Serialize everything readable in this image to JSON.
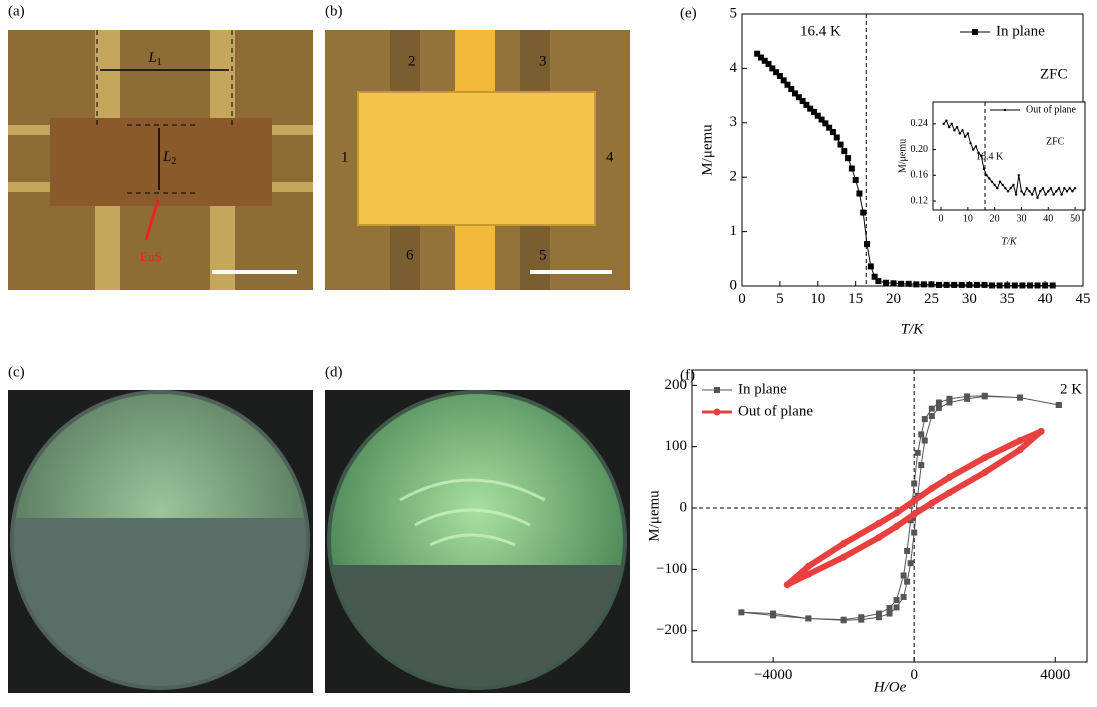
{
  "figure": {
    "panels": [
      "(a)",
      "(b)",
      "(c)",
      "(d)",
      "(e)",
      "(f)"
    ],
    "a": {
      "L1": {
        "text": "L",
        "sub": "1"
      },
      "L2": {
        "text": "L",
        "sub": "2"
      },
      "material": "EuS"
    },
    "b": {
      "electrodes": [
        "1",
        "2",
        "3",
        "4",
        "5",
        "6"
      ]
    }
  },
  "chart_data": [
    {
      "type": "line",
      "xlabel": "T/K",
      "ylabel": "M/μemu",
      "xlim": [
        0,
        45
      ],
      "ylim": [
        0,
        5
      ],
      "xticks": [
        0,
        5,
        10,
        15,
        20,
        25,
        30,
        35,
        40,
        45
      ],
      "yticks": [
        0,
        1,
        2,
        3,
        4,
        5
      ],
      "vline": 16.4,
      "annotations": [
        "16.4 K",
        "ZFC"
      ],
      "legend": "upper right",
      "series": [
        {
          "name": "In plane",
          "color": "#000000",
          "marker": "square",
          "x": [
            2,
            2.5,
            3,
            3.5,
            4,
            4.5,
            5,
            5.5,
            6,
            6.5,
            7,
            7.5,
            8,
            8.5,
            9,
            9.5,
            10,
            10.5,
            11,
            11.5,
            12,
            12.5,
            13,
            13.5,
            14,
            14.5,
            15,
            15.5,
            16,
            16.5,
            17,
            17.5,
            18,
            19,
            20,
            21,
            22,
            23,
            24,
            25,
            26,
            27,
            28,
            29,
            30,
            31,
            32,
            33,
            34,
            35,
            36,
            37,
            38,
            39,
            40,
            41
          ],
          "values": [
            4.27,
            4.2,
            4.14,
            4.08,
            4.0,
            3.93,
            3.86,
            3.78,
            3.7,
            3.62,
            3.54,
            3.47,
            3.4,
            3.33,
            3.26,
            3.2,
            3.13,
            3.06,
            2.99,
            2.91,
            2.83,
            2.73,
            2.6,
            2.48,
            2.35,
            2.16,
            1.95,
            1.7,
            1.35,
            0.77,
            0.36,
            0.17,
            0.09,
            0.06,
            0.05,
            0.04,
            0.04,
            0.03,
            0.03,
            0.03,
            0.02,
            0.02,
            0.02,
            0.02,
            0.02,
            0.02,
            0.02,
            0.01,
            0.01,
            0.01,
            0.01,
            0.01,
            0.01,
            0.01,
            0.01,
            0.01
          ]
        }
      ]
    },
    {
      "type": "line",
      "xlabel": "T/K",
      "ylabel": "M/μemu",
      "xlim": [
        -3,
        53.7
      ],
      "ylim": [
        0.106,
        0.274
      ],
      "xticks": [
        0,
        10,
        20,
        30,
        40,
        50
      ],
      "yticks": [
        0.12,
        0.16,
        {
          "value": 0.2,
          "label": "0.20"
        },
        0.24
      ],
      "vline": 16.4,
      "annotations": [
        "16.4 K",
        "ZFC"
      ],
      "legend": "upper right",
      "series": [
        {
          "name": "Out of plane",
          "color": "#000000",
          "marker": "dot",
          "x": [
            1,
            2,
            3,
            4,
            5,
            6,
            7,
            8,
            9,
            10,
            11,
            12,
            13,
            14,
            15,
            16,
            17,
            18,
            19,
            20,
            21,
            22,
            23,
            24,
            25,
            26,
            27,
            28,
            29,
            30,
            31,
            32,
            33,
            34,
            35,
            36,
            37,
            38,
            39,
            40,
            41,
            42,
            43,
            44,
            45,
            46,
            47,
            48,
            49,
            50
          ],
          "values": [
            0.24,
            0.245,
            0.235,
            0.24,
            0.23,
            0.235,
            0.225,
            0.23,
            0.22,
            0.225,
            0.21,
            0.2,
            0.205,
            0.195,
            0.19,
            0.17,
            0.16,
            0.155,
            0.15,
            0.145,
            0.14,
            0.15,
            0.145,
            0.14,
            0.135,
            0.14,
            0.145,
            0.13,
            0.16,
            0.135,
            0.13,
            0.14,
            0.135,
            0.13,
            0.14,
            0.125,
            0.135,
            0.14,
            0.13,
            0.135,
            0.14,
            0.13,
            0.135,
            0.14,
            0.13,
            0.14,
            0.135,
            0.14,
            0.135,
            0.14
          ]
        }
      ]
    },
    {
      "type": "line",
      "xlabel": "H/Oe",
      "ylabel": "M/μemu",
      "xlim": [
        -6300,
        4900
      ],
      "ylim": [
        -251,
        225
      ],
      "xticks": [
        {
          "value": -4000,
          "label": "−4000"
        },
        0,
        4000
      ],
      "yticks": [
        {
          "value": -200,
          "label": "−200"
        },
        {
          "value": -100,
          "label": "−100"
        },
        0,
        100,
        200
      ],
      "vline": 0,
      "hline": 0,
      "annotations": [
        "2 K"
      ],
      "legend": "upper left",
      "series": [
        {
          "name": "In plane",
          "color": "#555555",
          "marker": "square",
          "x": [
            4100,
            3000,
            2000,
            1500,
            1000,
            700,
            500,
            300,
            200,
            100,
            0,
            -100,
            -200,
            -300,
            -500,
            -700,
            -1000,
            -1500,
            -2000,
            -3000,
            -4000,
            -4900,
            -4000,
            -3000,
            -2000,
            -1500,
            -1000,
            -700,
            -500,
            -300,
            -200,
            -100,
            0,
            100,
            200,
            300,
            500,
            700,
            1000,
            1500,
            2000,
            3000,
            4100
          ],
          "values": [
            168,
            180,
            183,
            182,
            178,
            172,
            162,
            145,
            120,
            90,
            40,
            -20,
            -70,
            -110,
            -150,
            -163,
            -172,
            -178,
            -182,
            -180,
            -175,
            -170,
            -172,
            -180,
            -183,
            -182,
            -178,
            -172,
            -162,
            -145,
            -120,
            -90,
            -40,
            20,
            70,
            110,
            150,
            163,
            172,
            178,
            182,
            180,
            168
          ]
        },
        {
          "name": "Out of plane",
          "color": "#e8403f",
          "marker": "circle",
          "x": [
            3600,
            3000,
            2000,
            1000,
            500,
            0,
            -500,
            -1000,
            -2000,
            -3000,
            -3600,
            -3000,
            -2000,
            -1000,
            -500,
            0,
            500,
            1000,
            2000,
            3000,
            3600
          ],
          "values": [
            125,
            110,
            82,
            50,
            32,
            12,
            -8,
            -25,
            -58,
            -95,
            -125,
            -108,
            -80,
            -48,
            -30,
            -10,
            8,
            25,
            58,
            95,
            125
          ]
        }
      ]
    }
  ]
}
